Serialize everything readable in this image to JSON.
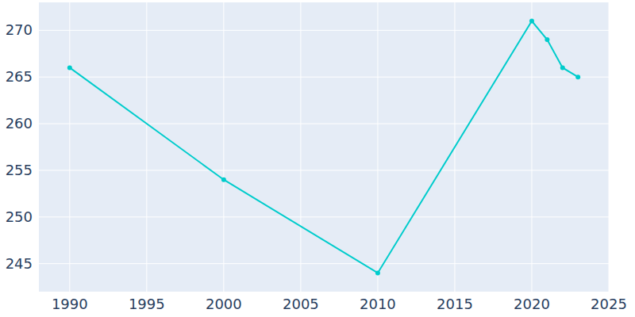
{
  "chart_data": {
    "type": "line",
    "x": [
      1990,
      2000,
      2010,
      2020,
      2021,
      2022,
      2023
    ],
    "values": [
      266,
      254,
      244,
      271,
      269,
      266,
      265
    ],
    "color": "#00cccc",
    "marker": "circle",
    "xlim": [
      1988,
      2025
    ],
    "xticks": [
      1990,
      1995,
      2000,
      2005,
      2010,
      2015,
      2020,
      2025
    ],
    "ylim": [
      242,
      273
    ],
    "yticks": [
      245,
      250,
      255,
      260,
      265,
      270
    ],
    "grid": true
  }
}
